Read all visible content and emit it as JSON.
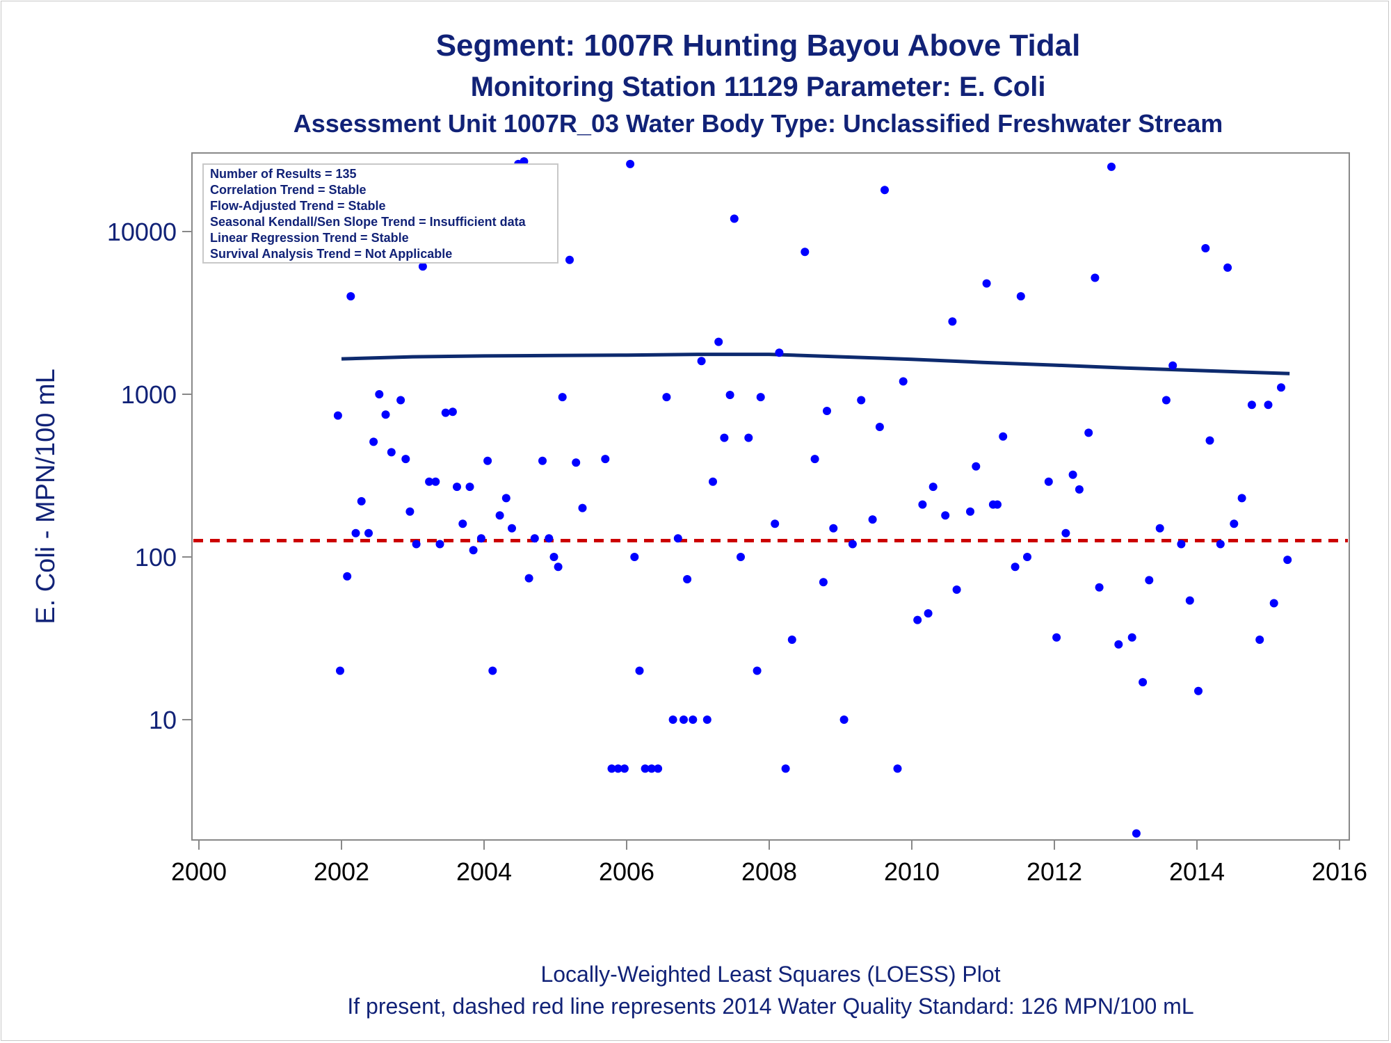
{
  "titles": {
    "line1": "Segment: 1007R  Hunting Bayou Above Tidal",
    "line2": "Monitoring Station 11129 Parameter: E. Coli",
    "line3": "Assessment Unit 1007R_03   Water Body Type: Unclassified Freshwater Stream"
  },
  "info_box": [
    "Number of Results = 135",
    "Correlation Trend = Stable",
    "Flow-Adjusted Trend = Stable",
    "Seasonal Kendall/Sen Slope Trend = Insufficient data",
    "Linear Regression Trend = Stable",
    "Survival Analysis Trend = Not Applicable"
  ],
  "footnotes": {
    "line1": "Locally-Weighted Least Squares (LOESS) Plot",
    "line2": "If present, dashed red line represents 2014 Water Quality Standard: 126 MPN/100 mL"
  },
  "colors": {
    "text": "#112277",
    "points": "#0000ff",
    "loess": "#0d2a6e",
    "standard": "#cc0000",
    "axis": "#888888"
  },
  "chart_data": {
    "type": "scatter",
    "xlabel": "",
    "ylabel": "E. Coli - MPN/100 mL",
    "x_scale": "linear",
    "y_scale": "log",
    "xlim": [
      2000,
      2016
    ],
    "ylim": [
      1.7,
      30000
    ],
    "xticks": [
      2000,
      2002,
      2004,
      2006,
      2008,
      2010,
      2012,
      2014,
      2016
    ],
    "yticks": [
      10,
      100,
      1000,
      10000
    ],
    "grid": false,
    "standard_line": 126,
    "loess": {
      "x": [
        2002.0,
        2003.0,
        2004.0,
        2005.0,
        2006.0,
        2007.0,
        2008.0,
        2009.0,
        2010.0,
        2011.0,
        2012.0,
        2013.0,
        2014.0,
        2015.3
      ],
      "y": [
        1650,
        1700,
        1720,
        1730,
        1740,
        1760,
        1760,
        1700,
        1640,
        1570,
        1510,
        1450,
        1400,
        1340
      ]
    },
    "points": {
      "x": [
        2001.95,
        2001.98,
        2002.08,
        2002.13,
        2002.2,
        2002.28,
        2002.38,
        2002.45,
        2002.53,
        2002.62,
        2002.7,
        2002.83,
        2002.9,
        2002.96,
        2003.05,
        2003.14,
        2003.23,
        2003.32,
        2003.38,
        2003.46,
        2003.56,
        2003.62,
        2003.7,
        2003.8,
        2003.85,
        2003.96,
        2004.05,
        2004.12,
        2004.22,
        2004.31,
        2004.39,
        2004.48,
        2004.56,
        2004.63,
        2004.71,
        2004.82,
        2004.91,
        2004.98,
        2005.04,
        2005.1,
        2005.2,
        2005.29,
        2005.38,
        2005.7,
        2005.79,
        2005.88,
        2005.97,
        2006.05,
        2006.11,
        2006.18,
        2006.26,
        2006.35,
        2006.44,
        2006.56,
        2006.65,
        2006.72,
        2006.8,
        2006.85,
        2006.93,
        2007.05,
        2007.13,
        2007.21,
        2007.29,
        2007.37,
        2007.45,
        2007.51,
        2007.6,
        2007.71,
        2007.83,
        2007.88,
        2008.08,
        2008.14,
        2008.23,
        2008.32,
        2008.5,
        2008.64,
        2008.76,
        2008.81,
        2008.9,
        2009.05,
        2009.17,
        2009.29,
        2009.45,
        2009.55,
        2009.62,
        2009.8,
        2009.88,
        2010.08,
        2010.15,
        2010.23,
        2010.3,
        2010.47,
        2010.57,
        2010.63,
        2010.82,
        2010.9,
        2011.05,
        2011.14,
        2011.2,
        2011.28,
        2011.45,
        2011.53,
        2011.62,
        2011.92,
        2012.03,
        2012.16,
        2012.26,
        2012.35,
        2012.48,
        2012.57,
        2012.63,
        2012.8,
        2012.9,
        2013.09,
        2013.15,
        2013.24,
        2013.33,
        2013.48,
        2013.57,
        2013.66,
        2013.78,
        2013.9,
        2014.02,
        2014.12,
        2014.18,
        2014.33,
        2014.43,
        2014.52,
        2014.63,
        2014.77,
        2014.88,
        2015.0,
        2015.08,
        2015.18,
        2015.27
      ],
      "y": [
        740,
        20,
        76,
        4000,
        140,
        220,
        140,
        510,
        1000,
        750,
        440,
        920,
        400,
        190,
        120,
        6100,
        290,
        290,
        120,
        770,
        780,
        270,
        160,
        270,
        110,
        130,
        390,
        20,
        180,
        230,
        150,
        26000,
        27000,
        74,
        130,
        390,
        130,
        100,
        87,
        960,
        6700,
        380,
        200,
        400,
        5,
        5,
        5,
        26000,
        100,
        20,
        5,
        5,
        5,
        960,
        10,
        130,
        10,
        73,
        10,
        1600,
        10,
        290,
        2100,
        540,
        990,
        12000,
        100,
        540,
        20,
        960,
        160,
        1800,
        5,
        31,
        7500,
        400,
        70,
        790,
        150,
        10,
        120,
        920,
        170,
        630,
        18000,
        5,
        1200,
        41,
        210,
        45,
        270,
        180,
        2800,
        63,
        190,
        360,
        4800,
        210,
        210,
        550,
        87,
        4000,
        100,
        290,
        32,
        140,
        320,
        260,
        580,
        5200,
        65,
        25000,
        29,
        32,
        2,
        17,
        72,
        150,
        920,
        1500,
        120,
        54,
        15,
        7900,
        520,
        120,
        6000,
        160,
        230,
        860,
        31,
        860,
        52,
        1100,
        96
      ]
    }
  }
}
